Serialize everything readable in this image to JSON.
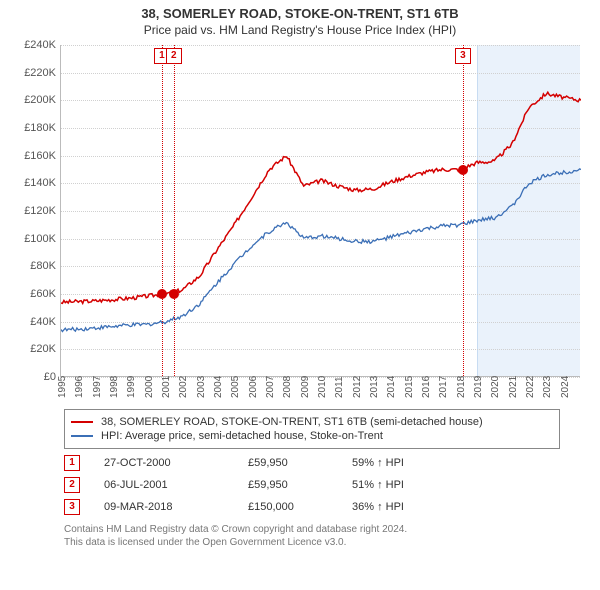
{
  "title_main": "38, SOMERLEY ROAD, STOKE-ON-TRENT, ST1 6TB",
  "title_sub": "Price paid vs. HM Land Registry's House Price Index (HPI)",
  "chart": {
    "type": "line",
    "x_start_year": 1995,
    "x_end_year": 2025,
    "xtick_years": [
      1995,
      1996,
      1997,
      1998,
      1999,
      2000,
      2001,
      2002,
      2003,
      2004,
      2005,
      2006,
      2007,
      2008,
      2009,
      2010,
      2011,
      2012,
      2013,
      2014,
      2015,
      2016,
      2017,
      2018,
      2019,
      2020,
      2021,
      2022,
      2023,
      2024
    ],
    "ylim": [
      0,
      240000
    ],
    "ytick_step": 20000,
    "ytick_labels": [
      "£0",
      "£20K",
      "£40K",
      "£60K",
      "£80K",
      "£100K",
      "£120K",
      "£140K",
      "£160K",
      "£180K",
      "£200K",
      "£220K",
      "£240K"
    ],
    "grid_color": "#d0d0d0",
    "bg_color": "#ffffff",
    "future_band": {
      "from_year": 2019,
      "color": "#eaf2fb",
      "border": "#c8dcf2"
    },
    "series": [
      {
        "name": "property",
        "label": "38, SOMERLEY ROAD, STOKE-ON-TRENT, ST1 6TB (semi-detached house)",
        "color": "#d40000",
        "line_width": 1.5,
        "points_yearly": [
          54000,
          54500,
          55000,
          56000,
          57000,
          58500,
          60000,
          63000,
          73000,
          92000,
          110000,
          130000,
          150000,
          160000,
          138000,
          142000,
          138000,
          135000,
          136000,
          141000,
          145000,
          148000,
          150000,
          150000,
          155000,
          156000,
          168000,
          195000,
          205000,
          202000,
          200000
        ]
      },
      {
        "name": "hpi",
        "label": "HPI: Average price, semi-detached house, Stoke-on-Trent",
        "color": "#3b6fb6",
        "line_width": 1.3,
        "points_yearly": [
          34000,
          34500,
          35500,
          36500,
          37500,
          38000,
          40000,
          44000,
          53000,
          68000,
          82000,
          95000,
          105000,
          112000,
          100000,
          102000,
          100000,
          98000,
          98000,
          101000,
          104000,
          107000,
          109000,
          110000,
          113000,
          115000,
          123000,
          140000,
          146000,
          148000,
          150000
        ]
      }
    ],
    "vmarkers": [
      {
        "n": "1",
        "year": 2000.82,
        "color": "#d40000"
      },
      {
        "n": "2",
        "year": 2001.51,
        "color": "#d40000"
      },
      {
        "n": "3",
        "year": 2018.19,
        "color": "#d40000"
      }
    ],
    "sale_points": [
      {
        "year": 2000.82,
        "value": 59950
      },
      {
        "year": 2001.51,
        "value": 59950
      },
      {
        "year": 2018.19,
        "value": 150000
      }
    ],
    "sale_point_color": "#d40000"
  },
  "legend": {
    "rows": [
      {
        "color": "#d40000",
        "text": "38, SOMERLEY ROAD, STOKE-ON-TRENT, ST1 6TB (semi-detached house)"
      },
      {
        "color": "#3b6fb6",
        "text": "HPI: Average price, semi-detached house, Stoke-on-Trent"
      }
    ]
  },
  "transactions": [
    {
      "n": "1",
      "color": "#d40000",
      "date": "27-OCT-2000",
      "price": "£59,950",
      "pct": "59% ↑ HPI"
    },
    {
      "n": "2",
      "color": "#d40000",
      "date": "06-JUL-2001",
      "price": "£59,950",
      "pct": "51% ↑ HPI"
    },
    {
      "n": "3",
      "color": "#d40000",
      "date": "09-MAR-2018",
      "price": "£150,000",
      "pct": "36% ↑ HPI"
    }
  ],
  "footer_line1": "Contains HM Land Registry data © Crown copyright and database right 2024.",
  "footer_line2": "This data is licensed under the Open Government Licence v3.0."
}
